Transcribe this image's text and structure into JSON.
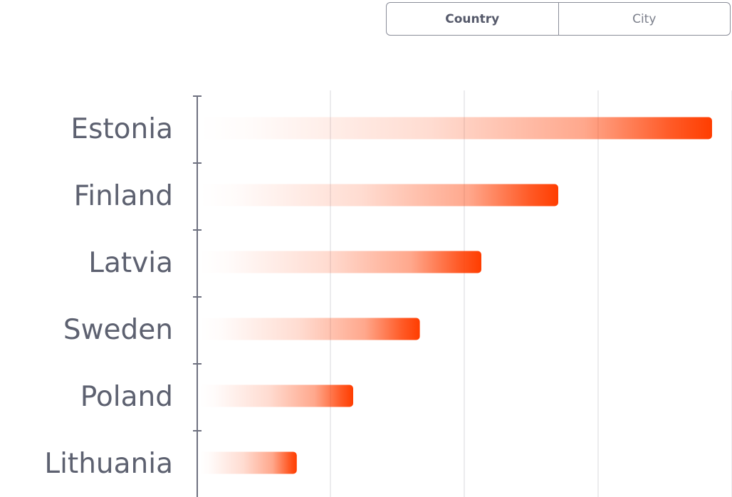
{
  "toggle": {
    "country_label": "Country",
    "city_label": "City",
    "selected": "Country"
  },
  "chart_data": {
    "type": "bar",
    "orientation": "horizontal",
    "categories": [
      "Estonia",
      "Finland",
      "Latvia",
      "Sweden",
      "Poland",
      "Lithuania"
    ],
    "values": [
      100,
      70,
      55,
      43,
      30,
      19
    ],
    "xlim": [
      0,
      100
    ],
    "grid": true,
    "title": "",
    "xlabel": "",
    "ylabel": "",
    "bar_color": "#ff3d00"
  }
}
